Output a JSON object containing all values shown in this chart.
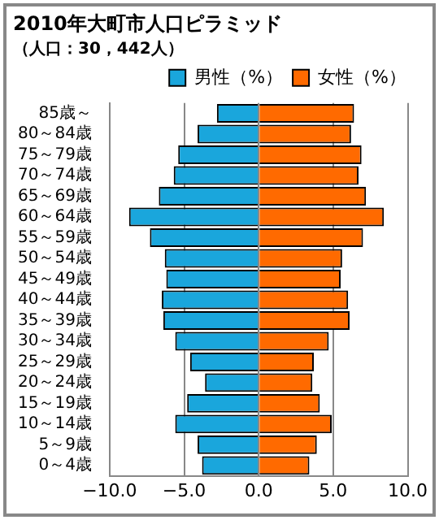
{
  "chart_data": {
    "type": "bar",
    "orientation": "horizontal",
    "stacked": true,
    "title": "2010年大町市人口ピラミッド",
    "subtitle": "（人口：30，442人）",
    "categories": [
      "85歳～",
      "80～84歳",
      "75～79歳",
      "70～74歳",
      "65～69歳",
      "60～64歳",
      "55～59歳",
      "50～54歳",
      "45～49歳",
      "40～44歳",
      "35～39歳",
      "30～34歳",
      "25～29歳",
      "20～24歳",
      "15～19歳",
      "10～14歳",
      "5～9歳",
      "0～4歳"
    ],
    "series": [
      {
        "name": "男性（%）",
        "color": "#1aa6dc",
        "values": [
          -2.8,
          -4.1,
          -5.4,
          -5.7,
          -6.7,
          -8.7,
          -7.3,
          -6.3,
          -6.2,
          -6.5,
          -6.4,
          -5.6,
          -4.6,
          -3.6,
          -4.8,
          -5.6,
          -4.1,
          -3.8
        ]
      },
      {
        "name": "女性（%）",
        "color": "#ff6a00",
        "values": [
          6.4,
          6.2,
          6.9,
          6.7,
          7.2,
          8.4,
          7.0,
          5.6,
          5.5,
          6.0,
          6.1,
          4.7,
          3.7,
          3.6,
          4.1,
          4.9,
          3.9,
          3.4
        ]
      }
    ],
    "xlim": [
      -10,
      10
    ],
    "xticks": [
      {
        "value": -10,
        "label": "−10.0"
      },
      {
        "value": -5,
        "label": "−5.0"
      },
      {
        "value": 0,
        "label": "0.0"
      },
      {
        "value": 5,
        "label": "5.0"
      },
      {
        "value": 10,
        "label": "10.0"
      }
    ],
    "grid": "x",
    "legend": "top right"
  }
}
